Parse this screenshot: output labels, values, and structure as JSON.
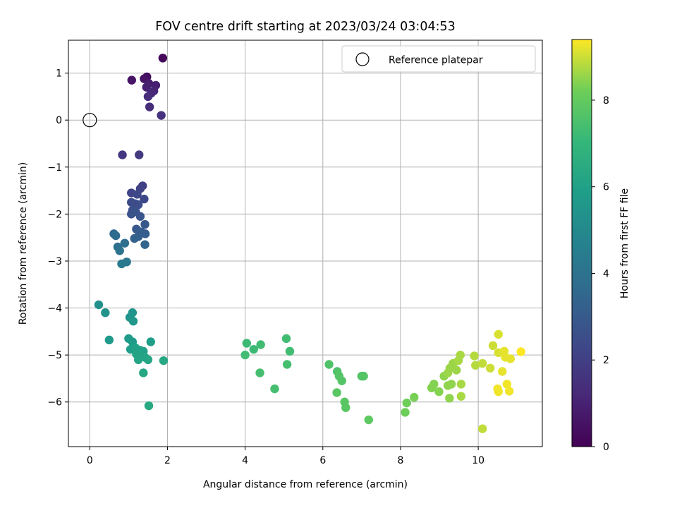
{
  "chart_data": {
    "type": "scatter",
    "title": "FOV centre drift starting at 2023/03/24 03:04:53",
    "xlabel": "Angular distance from reference (arcmin)",
    "ylabel": "Rotation from reference (arcmin)",
    "xlim": [
      -0.55,
      11.65
    ],
    "ylim": [
      -6.95,
      1.7
    ],
    "xticks": [
      0,
      2,
      4,
      6,
      8,
      10
    ],
    "yticks": [
      1,
      0,
      -1,
      -2,
      -3,
      -4,
      -5,
      -6
    ],
    "xtick_labels": [
      "0",
      "2",
      "4",
      "6",
      "8",
      "10"
    ],
    "ytick_labels": [
      "1",
      "0",
      "−1",
      "−2",
      "−3",
      "−4",
      "−5",
      "−6"
    ],
    "grid": true,
    "legend": {
      "position": "top-right",
      "entries": [
        "Reference platepar"
      ]
    },
    "reference_point": {
      "x": 0,
      "y": 0
    },
    "colorbar": {
      "label": "Hours from first FF file",
      "range": [
        0,
        9.4
      ],
      "ticks": [
        0,
        2,
        4,
        6,
        8
      ],
      "tick_labels": [
        "0",
        "2",
        "4",
        "6",
        "8"
      ],
      "colormap": "viridis"
    },
    "points": [
      [
        1.88,
        1.32,
        0.2
      ],
      [
        1.47,
        0.92,
        0.4
      ],
      [
        1.4,
        0.88,
        0.5
      ],
      [
        1.08,
        0.85,
        0.6
      ],
      [
        1.52,
        0.78,
        0.8
      ],
      [
        1.7,
        0.74,
        0.9
      ],
      [
        1.46,
        0.7,
        1.0
      ],
      [
        1.65,
        0.62,
        1.1
      ],
      [
        1.58,
        0.57,
        1.2
      ],
      [
        1.5,
        0.5,
        1.3
      ],
      [
        1.54,
        0.28,
        1.4
      ],
      [
        1.84,
        0.1,
        1.5
      ],
      [
        0.84,
        -0.74,
        1.7
      ],
      [
        1.27,
        -0.74,
        1.8
      ],
      [
        1.36,
        -1.4,
        2.0
      ],
      [
        1.3,
        -1.46,
        2.1
      ],
      [
        1.07,
        -1.55,
        2.2
      ],
      [
        1.22,
        -1.58,
        2.3
      ],
      [
        1.4,
        -1.68,
        2.3
      ],
      [
        1.07,
        -1.75,
        2.4
      ],
      [
        1.17,
        -1.78,
        2.5
      ],
      [
        1.25,
        -1.8,
        2.5
      ],
      [
        1.1,
        -1.92,
        2.6
      ],
      [
        1.18,
        -1.95,
        2.7
      ],
      [
        1.07,
        -2.0,
        2.7
      ],
      [
        1.3,
        -2.05,
        2.8
      ],
      [
        1.42,
        -2.22,
        2.9
      ],
      [
        1.2,
        -2.32,
        3.0
      ],
      [
        1.32,
        -2.38,
        3.1
      ],
      [
        1.43,
        -2.42,
        3.1
      ],
      [
        1.25,
        -2.48,
        3.2
      ],
      [
        1.15,
        -2.52,
        3.3
      ],
      [
        1.42,
        -2.65,
        3.4
      ],
      [
        0.62,
        -2.42,
        3.6
      ],
      [
        0.67,
        -2.46,
        3.7
      ],
      [
        0.9,
        -2.62,
        3.8
      ],
      [
        0.72,
        -2.7,
        3.9
      ],
      [
        0.77,
        -2.78,
        4.0
      ],
      [
        0.95,
        -3.02,
        4.2
      ],
      [
        0.82,
        -3.06,
        4.3
      ],
      [
        0.23,
        -3.93,
        5.3
      ],
      [
        0.4,
        -4.1,
        5.4
      ],
      [
        1.1,
        -4.1,
        5.5
      ],
      [
        1.03,
        -4.2,
        5.5
      ],
      [
        1.12,
        -4.28,
        5.6
      ],
      [
        0.5,
        -4.68,
        5.7
      ],
      [
        1.0,
        -4.65,
        5.8
      ],
      [
        1.1,
        -4.72,
        5.8
      ],
      [
        1.57,
        -4.72,
        5.9
      ],
      [
        1.05,
        -4.88,
        5.9
      ],
      [
        1.18,
        -4.85,
        6.0
      ],
      [
        1.3,
        -4.9,
        6.0
      ],
      [
        1.38,
        -4.92,
        6.0
      ],
      [
        1.2,
        -4.98,
        6.1
      ],
      [
        1.28,
        -5.02,
        6.1
      ],
      [
        1.42,
        -5.05,
        6.2
      ],
      [
        1.25,
        -5.1,
        6.2
      ],
      [
        1.5,
        -5.1,
        6.2
      ],
      [
        1.9,
        -5.12,
        6.3
      ],
      [
        1.38,
        -5.38,
        6.3
      ],
      [
        1.52,
        -6.08,
        6.4
      ],
      [
        4.04,
        -4.75,
        7.2
      ],
      [
        4.22,
        -4.88,
        7.2
      ],
      [
        4.4,
        -4.78,
        7.3
      ],
      [
        5.06,
        -4.65,
        7.3
      ],
      [
        5.15,
        -4.92,
        7.3
      ],
      [
        4.0,
        -5.0,
        7.3
      ],
      [
        5.08,
        -5.2,
        7.4
      ],
      [
        4.38,
        -5.38,
        7.4
      ],
      [
        4.76,
        -5.72,
        7.4
      ],
      [
        6.16,
        -5.2,
        7.6
      ],
      [
        6.37,
        -5.35,
        7.6
      ],
      [
        6.42,
        -5.45,
        7.7
      ],
      [
        6.49,
        -5.55,
        7.7
      ],
      [
        7.0,
        -5.45,
        7.7
      ],
      [
        7.05,
        -5.45,
        7.7
      ],
      [
        6.36,
        -5.8,
        7.8
      ],
      [
        6.56,
        -6.0,
        7.8
      ],
      [
        6.59,
        -6.12,
        7.8
      ],
      [
        7.18,
        -6.38,
        7.9
      ],
      [
        8.12,
        -6.22,
        8.2
      ],
      [
        8.16,
        -6.02,
        8.2
      ],
      [
        8.35,
        -5.9,
        8.3
      ],
      [
        8.8,
        -5.7,
        8.4
      ],
      [
        8.86,
        -5.62,
        8.4
      ],
      [
        8.99,
        -5.78,
        8.4
      ],
      [
        9.12,
        -5.45,
        8.5
      ],
      [
        9.22,
        -5.65,
        8.5
      ],
      [
        9.31,
        -5.62,
        8.5
      ],
      [
        9.26,
        -5.92,
        8.5
      ],
      [
        9.22,
        -5.38,
        8.6
      ],
      [
        9.27,
        -5.28,
        8.6
      ],
      [
        9.35,
        -5.18,
        8.6
      ],
      [
        9.44,
        -5.32,
        8.6
      ],
      [
        9.49,
        -5.12,
        8.7
      ],
      [
        9.54,
        -5.0,
        8.7
      ],
      [
        9.56,
        -5.62,
        8.7
      ],
      [
        9.56,
        -5.88,
        8.7
      ],
      [
        9.9,
        -5.02,
        8.8
      ],
      [
        9.93,
        -5.22,
        8.8
      ],
      [
        10.11,
        -5.18,
        8.9
      ],
      [
        10.11,
        -6.57,
        8.9
      ],
      [
        10.31,
        -5.28,
        9.0
      ],
      [
        10.38,
        -4.8,
        9.0
      ],
      [
        10.52,
        -4.56,
        9.1
      ],
      [
        10.52,
        -4.95,
        9.1
      ],
      [
        10.67,
        -4.92,
        9.2
      ],
      [
        10.7,
        -5.05,
        9.2
      ],
      [
        10.83,
        -5.08,
        9.2
      ],
      [
        10.62,
        -5.35,
        9.2
      ],
      [
        10.5,
        -5.72,
        9.3
      ],
      [
        10.52,
        -5.78,
        9.3
      ],
      [
        10.74,
        -5.62,
        9.3
      ],
      [
        10.8,
        -5.77,
        9.3
      ],
      [
        11.1,
        -4.93,
        9.4
      ]
    ]
  }
}
